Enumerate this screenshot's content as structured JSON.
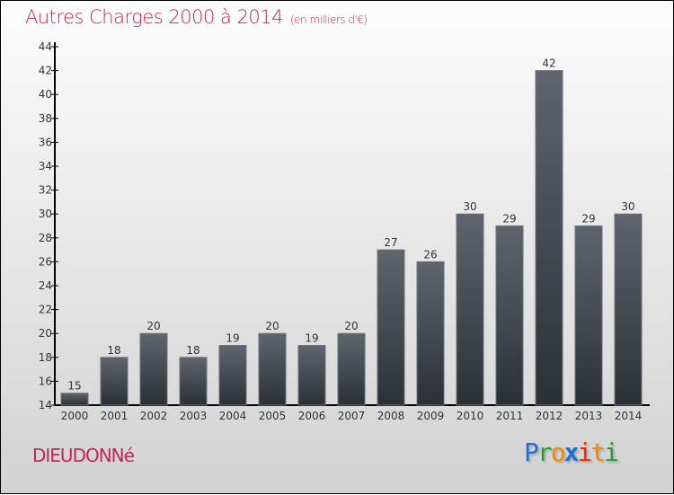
{
  "chart_data": {
    "type": "bar",
    "title": "Autres Charges 2000 à 2014",
    "unit": "(en milliers d'€)",
    "categories": [
      "2000",
      "2001",
      "2002",
      "2003",
      "2004",
      "2005",
      "2006",
      "2007",
      "2008",
      "2009",
      "2010",
      "2011",
      "2012",
      "2013",
      "2014"
    ],
    "values": [
      15,
      18,
      20,
      18,
      19,
      20,
      19,
      20,
      27,
      26,
      30,
      29,
      42,
      29,
      30
    ],
    "ylim": [
      14,
      44
    ],
    "yticks": [
      14,
      16,
      18,
      20,
      22,
      24,
      26,
      28,
      30,
      32,
      34,
      36,
      38,
      40,
      42,
      44
    ],
    "xlabel": "",
    "ylabel": "",
    "bar_color": "#4a5058",
    "grid": false
  },
  "commune": "DIEUDONNé",
  "logo": "Proxiti",
  "colors": {
    "title": "#c0265a",
    "logo_blue": "#1e6fd0",
    "logo_green": "#2a9a3a",
    "logo_orange": "#f08a00",
    "logo_red": "#e03010"
  }
}
